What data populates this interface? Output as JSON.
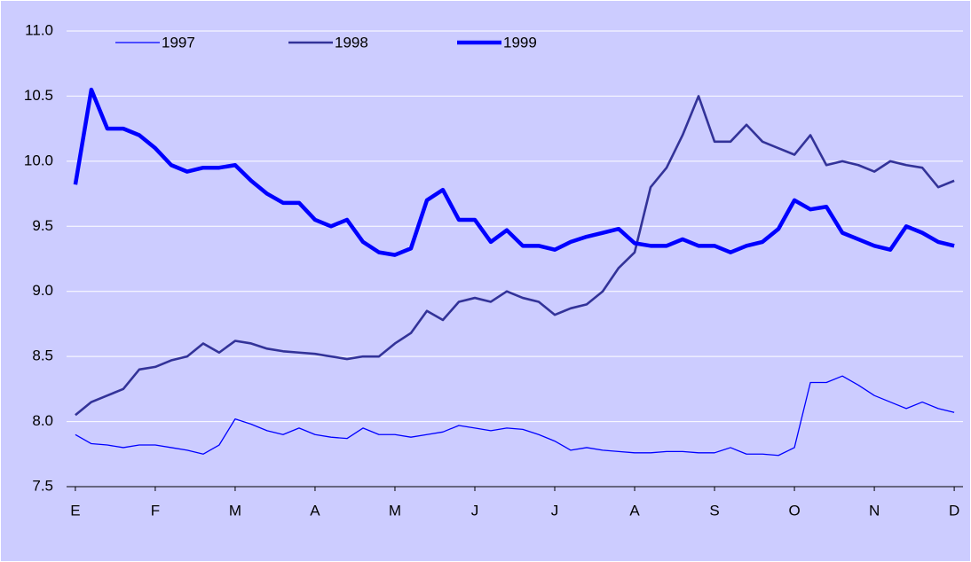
{
  "chart_data": {
    "type": "line",
    "x": [
      0,
      0.2,
      0.4,
      0.6,
      0.8,
      1.0,
      1.2,
      1.4,
      1.6,
      1.8,
      2.0,
      2.2,
      2.4,
      2.6,
      2.8,
      3.0,
      3.2,
      3.4,
      3.6,
      3.8,
      4.0,
      4.2,
      4.4,
      4.6,
      4.8,
      5.0,
      5.2,
      5.4,
      5.6,
      5.8,
      6.0,
      6.2,
      6.4,
      6.6,
      6.8,
      7.0,
      7.2,
      7.4,
      7.6,
      7.8,
      8.0,
      8.2,
      8.4,
      8.6,
      8.8,
      9.0,
      9.2,
      9.4,
      9.6,
      9.8,
      10.0,
      10.2,
      10.4,
      10.6,
      10.8,
      11.0
    ],
    "xlim": [
      -0.11,
      11.11
    ],
    "xticks": [
      {
        "value": 0,
        "label": "E"
      },
      {
        "value": 1,
        "label": "F"
      },
      {
        "value": 2,
        "label": "M"
      },
      {
        "value": 3,
        "label": "A"
      },
      {
        "value": 4,
        "label": "M"
      },
      {
        "value": 5,
        "label": "J"
      },
      {
        "value": 6,
        "label": "J"
      },
      {
        "value": 7,
        "label": "A"
      },
      {
        "value": 8,
        "label": "S"
      },
      {
        "value": 9,
        "label": "O"
      },
      {
        "value": 10,
        "label": "N"
      },
      {
        "value": 11,
        "label": "D"
      }
    ],
    "ylim": [
      7.5,
      11.0
    ],
    "yticks": [
      7.5,
      {
        "value": 8,
        "label": "8.0"
      },
      8.5,
      {
        "value": 9,
        "label": "9.0"
      },
      9.5,
      {
        "value": 10,
        "label": "10.0"
      },
      10.5,
      {
        "value": 11,
        "label": "11.0"
      }
    ],
    "grid": true,
    "series": [
      {
        "name": "1997",
        "color": "#0000ff",
        "width": 1.3,
        "values": [
          7.9,
          7.83,
          7.82,
          7.8,
          7.82,
          7.82,
          7.8,
          7.78,
          7.75,
          7.82,
          8.02,
          7.98,
          7.93,
          7.9,
          7.95,
          7.9,
          7.88,
          7.87,
          7.95,
          7.9,
          7.9,
          7.88,
          7.9,
          7.92,
          7.97,
          7.95,
          7.93,
          7.95,
          7.94,
          7.9,
          7.85,
          7.78,
          7.8,
          7.78,
          7.77,
          7.76,
          7.76,
          7.77,
          7.77,
          7.76,
          7.76,
          7.8,
          7.75,
          7.75,
          7.74,
          7.8,
          8.3,
          8.3,
          8.35,
          8.28,
          8.2,
          8.15,
          8.1,
          8.15,
          8.1,
          8.07
        ]
      },
      {
        "name": "1998",
        "color": "#333399",
        "width": 2.6,
        "values": [
          8.05,
          8.15,
          8.2,
          8.25,
          8.4,
          8.42,
          8.47,
          8.5,
          8.6,
          8.53,
          8.62,
          8.6,
          8.56,
          8.54,
          8.53,
          8.52,
          8.5,
          8.48,
          8.5,
          8.5,
          8.6,
          8.68,
          8.85,
          8.78,
          8.92,
          8.95,
          8.92,
          9.0,
          8.95,
          8.92,
          8.82,
          8.87,
          8.9,
          9.0,
          9.18,
          9.3,
          9.8,
          9.95,
          10.2,
          10.5,
          10.15,
          10.15,
          10.28,
          10.15,
          10.1,
          10.05,
          10.2,
          9.97,
          10.0,
          9.97,
          9.92,
          10.0,
          9.97,
          9.95,
          9.8,
          9.85
        ]
      },
      {
        "name": "1999",
        "color": "#0000ff",
        "width": 4.5,
        "values": [
          9.82,
          10.55,
          10.25,
          10.25,
          10.2,
          10.1,
          9.97,
          9.92,
          9.95,
          9.95,
          9.97,
          9.85,
          9.75,
          9.68,
          9.68,
          9.55,
          9.5,
          9.55,
          9.38,
          9.3,
          9.28,
          9.33,
          9.7,
          9.78,
          9.55,
          9.55,
          9.38,
          9.47,
          9.35,
          9.35,
          9.32,
          9.38,
          9.42,
          9.45,
          9.48,
          9.37,
          9.35,
          9.35,
          9.4,
          9.35,
          9.35,
          9.3,
          9.35,
          9.38,
          9.48,
          9.7,
          9.63,
          9.65,
          9.45,
          9.4,
          9.35,
          9.32,
          9.5,
          9.45,
          9.38,
          9.35
        ]
      }
    ]
  }
}
